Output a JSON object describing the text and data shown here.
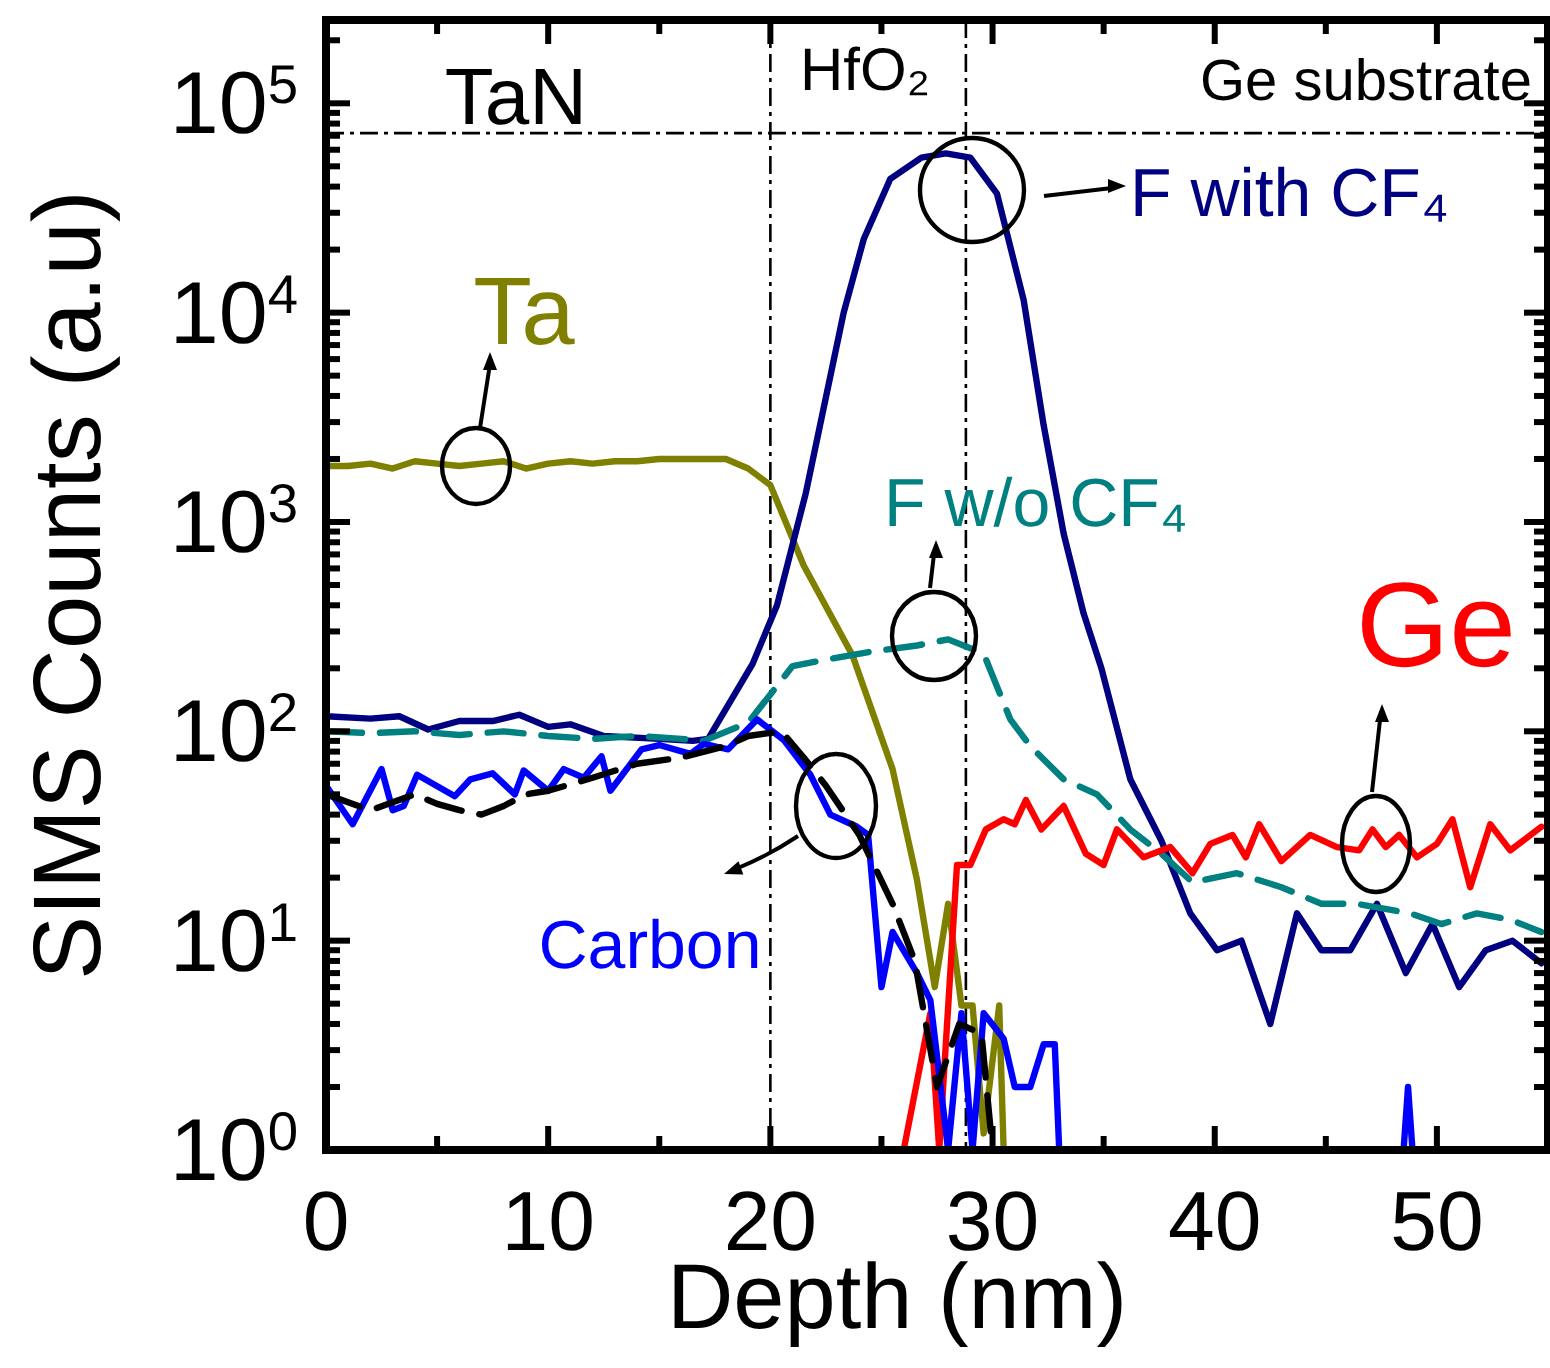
{
  "chart_data": {
    "type": "line",
    "xlabel": "Depth (nm)",
    "ylabel": "SIMS Counts (a.u)",
    "log": "y",
    "grid": false,
    "xlim": [
      0,
      55
    ],
    "ylim": [
      1,
      250000
    ],
    "xticks": [
      0,
      {
        "value": 5,
        "label": null
      },
      10,
      {
        "value": 15,
        "label": null
      },
      20,
      {
        "value": 25,
        "label": null
      },
      30,
      {
        "value": 35,
        "label": null
      },
      40,
      {
        "value": 45,
        "label": null
      },
      50
    ],
    "yticks": [
      {
        "value": 1,
        "label": "10$^{0}$"
      },
      {
        "value": 2,
        "label": null
      },
      {
        "value": 3,
        "label": null
      },
      {
        "value": 4,
        "label": null
      },
      {
        "value": 5,
        "label": null
      },
      {
        "value": 6,
        "label": null
      },
      {
        "value": 7,
        "label": null
      },
      {
        "value": 8,
        "label": null
      },
      {
        "value": 9,
        "label": null
      },
      {
        "value": 10,
        "label": "10$^{1}$"
      },
      {
        "value": 20,
        "label": null
      },
      {
        "value": 30,
        "label": null
      },
      {
        "value": 40,
        "label": null
      },
      {
        "value": 50,
        "label": null
      },
      {
        "value": 60,
        "label": null
      },
      {
        "value": 70,
        "label": null
      },
      {
        "value": 80,
        "label": null
      },
      {
        "value": 90,
        "label": null
      },
      {
        "value": 100,
        "label": "10$^{2}$"
      },
      {
        "value": 200,
        "label": null
      },
      {
        "value": 300,
        "label": null
      },
      {
        "value": 400,
        "label": null
      },
      {
        "value": 500,
        "label": null
      },
      {
        "value": 600,
        "label": null
      },
      {
        "value": 700,
        "label": null
      },
      {
        "value": 800,
        "label": null
      },
      {
        "value": 900,
        "label": null
      },
      {
        "value": 1000,
        "label": "10$^{3}$"
      },
      {
        "value": 2000,
        "label": null
      },
      {
        "value": 3000,
        "label": null
      },
      {
        "value": 4000,
        "label": null
      },
      {
        "value": 5000,
        "label": null
      },
      {
        "value": 6000,
        "label": null
      },
      {
        "value": 7000,
        "label": null
      },
      {
        "value": 8000,
        "label": null
      },
      {
        "value": 9000,
        "label": null
      },
      {
        "value": 10000,
        "label": "10$^{4}$"
      },
      {
        "value": 20000,
        "label": null
      },
      {
        "value": 30000,
        "label": null
      },
      {
        "value": 40000,
        "label": null
      },
      {
        "value": 50000,
        "label": null
      },
      {
        "value": 60000,
        "label": null
      },
      {
        "value": 70000,
        "label": null
      },
      {
        "value": 80000,
        "label": null
      },
      {
        "value": 90000,
        "label": null
      },
      {
        "value": 100000,
        "label": "10$^{5}$"
      },
      {
        "value": 200000,
        "label": null
      }
    ],
    "ref_lines": [
      {
        "axis": "x",
        "value": 20
      },
      {
        "axis": "x",
        "value": 28.8
      },
      {
        "axis": "y",
        "value": 72000
      }
    ],
    "annotations": [
      "TaN",
      "HfO₂",
      "Ge substrate"
    ],
    "series": [
      {
        "name": "Ta",
        "color": "#808000",
        "x": [
          0,
          1,
          2,
          3,
          4,
          5,
          6,
          7,
          8,
          9,
          10,
          11,
          12,
          13,
          14,
          15,
          16,
          17,
          18,
          19,
          20,
          21.5,
          23.7,
          25.5,
          26.6,
          27.4,
          28,
          28.6,
          29.1,
          29.6,
          30.3,
          30.5
        ],
        "values": [
          1850,
          1850,
          1900,
          1800,
          1950,
          1900,
          1850,
          1900,
          1950,
          1800,
          1900,
          1950,
          1900,
          1950,
          1950,
          2000,
          2000,
          2000,
          2000,
          1800,
          1500,
          620,
          230,
          66,
          19.5,
          6,
          15,
          4.9,
          4.9,
          1.2,
          4.9,
          1
        ]
      },
      {
        "name": "F with CF₄",
        "color": "#000080",
        "x": [
          0,
          2,
          3.3,
          4.6,
          6,
          7.5,
          8.7,
          10,
          11,
          12.5,
          15,
          16.5,
          17.2,
          19.2,
          20.3,
          21.6,
          23.3,
          24.2,
          25.4,
          26.8,
          27.9,
          29,
          30.2,
          31.4,
          32.3,
          33.2,
          34.1,
          34.9,
          36.2,
          37.6,
          38.9,
          40.1,
          41.2,
          42.5,
          43.7,
          44.8,
          46.1,
          47.3,
          48.6,
          49.8,
          51,
          52.2,
          53.4,
          54.7
        ],
        "values": [
          118,
          115,
          118,
          102,
          112,
          112,
          120,
          105,
          108,
          95,
          92,
          90,
          92,
          210,
          400,
          1380,
          10000,
          22400,
          43600,
          55000,
          57600,
          55000,
          37000,
          11500,
          2900,
          880,
          365,
          200,
          59,
          30,
          13.5,
          9,
          10,
          4,
          13.5,
          9,
          9,
          15,
          7,
          12,
          6,
          9,
          10,
          7.8
        ]
      },
      {
        "name": "F w/o CF₄",
        "color": "#008080",
        "line_style": "dashed",
        "x": [
          0,
          2,
          4,
          6,
          8,
          10,
          12,
          14,
          16,
          17,
          19,
          20,
          21,
          22.5,
          24.5,
          26.6,
          28,
          29.6,
          30.8,
          31.7,
          33.2,
          34.7,
          36.2,
          37.6,
          39,
          41,
          43,
          44.8,
          46.4,
          48.8,
          50.2,
          51.8,
          53.3,
          54.7
        ],
        "values": [
          100,
          98,
          100,
          96,
          100,
          95,
          92,
          95,
          92,
          90,
          110,
          150,
          205,
          220,
          240,
          257,
          275,
          235,
          114,
          85,
          59,
          50,
          34,
          26,
          19,
          21,
          18,
          15,
          15,
          13.5,
          12,
          13.5,
          12.6,
          11
        ]
      },
      {
        "name": "Ge",
        "color": "#ff0000",
        "x": [
          26,
          27.2,
          27.6,
          28.4,
          29,
          29.7,
          30.5,
          31,
          31.5,
          32.2,
          33.2,
          34.2,
          35,
          35.6,
          36.8,
          38,
          39,
          39.8,
          40.8,
          41.4,
          42,
          43,
          44.3,
          45.5,
          46.5,
          47.1,
          47.7,
          48.3,
          49.1,
          50,
          50.7,
          51.5,
          52.4,
          53.3,
          54.7
        ],
        "values": [
          1,
          4.5,
          1,
          23,
          23,
          34,
          38,
          36,
          47,
          34,
          44,
          26,
          23,
          34,
          25,
          28,
          21,
          29,
          32,
          25,
          36,
          24,
          32,
          28,
          27,
          34,
          28,
          32,
          25,
          29,
          38,
          18,
          36,
          27,
          35
        ]
      },
      {
        "name": "Carbon",
        "color": "#0000ff",
        "x": [
          0,
          1.2,
          2.5,
          3,
          3.5,
          4.1,
          5.8,
          6.5,
          7.5,
          8.5,
          8.9,
          10,
          10.7,
          11.6,
          12.4,
          12.8,
          14.2,
          15,
          16.4,
          17,
          18.1,
          19.4,
          20.6,
          21.8,
          22.7,
          23.9,
          24.4,
          25,
          25.5,
          26.6,
          27.2,
          28,
          28.6,
          29.1,
          29.6,
          30.5,
          31,
          31.7,
          32.3,
          32.8,
          33,
          48.5,
          48.7,
          48.9
        ],
        "values": [
          55,
          36,
          66,
          42,
          44,
          62,
          49,
          59,
          63,
          50,
          65,
          52,
          66,
          60,
          76,
          52,
          82,
          86,
          78,
          87,
          82,
          114,
          91,
          62,
          40,
          35,
          32,
          6,
          11,
          7,
          5.2,
          1,
          4.5,
          1,
          4.5,
          3.4,
          2,
          2,
          3.2,
          3.2,
          1,
          1,
          2,
          1
        ]
      },
      {
        "color": "#000000",
        "line_style": "dashed",
        "x": [
          0,
          2,
          4,
          5,
          6,
          7,
          8,
          9,
          10,
          12,
          14,
          16,
          18,
          19,
          20.5,
          21.5,
          22.5,
          24,
          25.5,
          26.5,
          27.5,
          28.5,
          29.5,
          30
        ],
        "values": [
          50,
          42,
          50,
          45,
          42,
          40,
          44,
          50,
          52,
          60,
          70,
          75,
          85,
          95,
          100,
          75,
          55,
          32,
          15,
          8,
          2,
          4,
          3.6,
          1
        ]
      }
    ]
  }
}
